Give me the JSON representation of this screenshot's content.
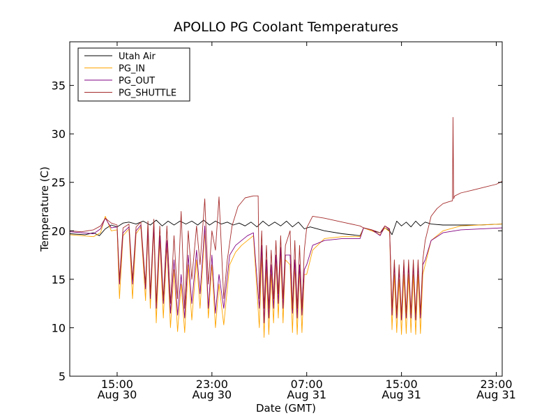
{
  "chart_data": {
    "type": "line",
    "title": "APOLLO PG Coolant Temperatures",
    "xlabel": "Date (GMT)",
    "ylabel": "Temperature (C)",
    "x_unit": "hours since Aug 30 00:00 GMT",
    "xlim": [
      11.0,
      47.5
    ],
    "ylim": [
      5,
      39.5
    ],
    "yticks": [
      5,
      10,
      15,
      20,
      25,
      30,
      35
    ],
    "xticks": [
      {
        "x": 15,
        "line1": "15:00",
        "line2": "Aug 30"
      },
      {
        "x": 23,
        "line1": "23:00",
        "line2": "Aug 30"
      },
      {
        "x": 31,
        "line1": "07:00",
        "line2": "Aug 31"
      },
      {
        "x": 39,
        "line1": "15:00",
        "line2": "Aug 31"
      },
      {
        "x": 47,
        "line1": "23:00",
        "line2": "Aug 31"
      }
    ],
    "grid": false,
    "legend_position": "top-left",
    "series": [
      {
        "name": "Utah Air",
        "color": "#000000",
        "x": [
          11.0,
          12.3,
          13.0,
          13.5,
          14.0,
          14.5,
          15.0,
          15.5,
          16.0,
          16.6,
          17.2,
          17.8,
          18.3,
          18.8,
          19.3,
          19.8,
          20.3,
          20.8,
          21.3,
          21.8,
          22.3,
          22.8,
          23.3,
          23.8,
          24.3,
          24.8,
          25.3,
          25.8,
          26.3,
          26.8,
          27.3,
          27.8,
          28.3,
          28.8,
          29.3,
          29.8,
          30.3,
          30.8,
          31.3,
          32.5,
          34.0,
          35.5,
          35.8,
          36.5,
          37.2,
          37.6,
          38.0,
          38.2,
          38.6,
          39.0,
          39.4,
          39.8,
          40.2,
          40.6,
          41.0,
          41.5,
          42.5,
          44.0,
          45.5,
          47.5
        ],
        "values": [
          19.7,
          19.6,
          19.8,
          19.5,
          20.2,
          20.6,
          20.4,
          20.8,
          20.9,
          20.7,
          21.0,
          20.6,
          21.1,
          20.5,
          21.0,
          20.6,
          21.0,
          20.7,
          21.0,
          20.6,
          21.1,
          20.6,
          21.0,
          20.7,
          20.9,
          20.6,
          20.8,
          20.5,
          20.9,
          20.4,
          21.0,
          20.5,
          20.9,
          20.5,
          21.0,
          20.4,
          20.9,
          20.2,
          20.4,
          20.0,
          19.7,
          19.5,
          20.3,
          20.0,
          19.8,
          20.3,
          20.0,
          19.6,
          21.0,
          20.5,
          20.9,
          20.4,
          21.0,
          20.5,
          20.9,
          20.7,
          20.6,
          20.6,
          20.6,
          20.7
        ]
      },
      {
        "name": "PG_IN",
        "color": "#ffa500",
        "x": [
          11.0,
          12.0,
          13.0,
          13.6,
          14.0,
          14.5,
          15.0,
          15.2,
          15.5,
          16.0,
          16.3,
          16.6,
          17.0,
          17.4,
          17.6,
          17.8,
          18.1,
          18.3,
          18.6,
          18.9,
          19.2,
          19.5,
          19.8,
          20.1,
          20.4,
          20.7,
          21.0,
          21.3,
          21.7,
          22.0,
          22.4,
          22.7,
          23.0,
          23.3,
          23.6,
          24.0,
          24.5,
          25.0,
          25.5,
          26.0,
          26.5,
          27.0,
          27.2,
          27.4,
          27.6,
          27.8,
          28.0,
          28.2,
          28.4,
          28.6,
          28.8,
          29.0,
          29.2,
          29.6,
          29.8,
          30.0,
          30.2,
          30.4,
          30.6,
          30.8,
          31.0,
          31.5,
          32.5,
          34.0,
          35.5,
          35.8,
          36.5,
          37.2,
          37.6,
          38.0,
          38.2,
          38.4,
          38.6,
          38.8,
          39.0,
          39.2,
          39.4,
          39.6,
          39.8,
          40.0,
          40.2,
          40.4,
          40.6,
          40.8,
          41.0,
          41.5,
          42.5,
          44.0,
          47.5
        ],
        "values": [
          19.6,
          19.5,
          19.4,
          19.8,
          21.5,
          20.0,
          20.1,
          13.0,
          19.5,
          20.2,
          13.0,
          19.7,
          20.4,
          12.8,
          20.0,
          12.0,
          20.3,
          10.5,
          19.0,
          11.0,
          18.5,
          10.0,
          16.0,
          9.6,
          14.5,
          9.5,
          16.5,
          10.8,
          17.0,
          12.0,
          20.0,
          11.0,
          16.5,
          10.0,
          14.5,
          10.3,
          16.5,
          17.8,
          18.5,
          19.0,
          19.5,
          10.0,
          17.5,
          9.0,
          16.0,
          9.3,
          15.5,
          10.5,
          17.0,
          11.0,
          17.8,
          10.5,
          17.0,
          16.5,
          9.5,
          16.5,
          9.3,
          16.0,
          9.5,
          15.5,
          15.5,
          18.0,
          19.2,
          19.4,
          19.4,
          20.3,
          20.0,
          19.6,
          20.3,
          19.9,
          9.8,
          15.5,
          9.5,
          15.0,
          9.3,
          15.5,
          9.4,
          15.5,
          9.5,
          15.5,
          9.3,
          15.5,
          9.4,
          15.5,
          16.5,
          19.0,
          20.0,
          20.5,
          20.7
        ]
      },
      {
        "name": "PG_OUT",
        "color": "#800080",
        "x": [
          11.0,
          12.0,
          13.0,
          13.6,
          14.0,
          14.5,
          15.0,
          15.2,
          15.5,
          16.0,
          16.3,
          16.6,
          17.0,
          17.4,
          17.6,
          17.8,
          18.1,
          18.3,
          18.6,
          18.9,
          19.2,
          19.5,
          19.8,
          20.1,
          20.4,
          20.7,
          21.0,
          21.3,
          21.7,
          22.0,
          22.4,
          22.7,
          23.0,
          23.3,
          23.6,
          24.0,
          24.5,
          25.0,
          25.5,
          26.0,
          26.5,
          27.0,
          27.2,
          27.4,
          27.6,
          27.8,
          28.0,
          28.2,
          28.4,
          28.6,
          28.8,
          29.0,
          29.2,
          29.6,
          29.8,
          30.0,
          30.2,
          30.4,
          30.6,
          30.8,
          31.0,
          31.5,
          32.5,
          34.0,
          35.5,
          35.8,
          36.5,
          37.2,
          37.6,
          38.0,
          38.2,
          38.4,
          38.6,
          38.8,
          39.0,
          39.2,
          39.4,
          39.6,
          39.8,
          40.0,
          40.2,
          40.4,
          40.6,
          40.8,
          41.0,
          41.5,
          42.5,
          44.0,
          47.5
        ],
        "values": [
          19.9,
          19.8,
          19.7,
          20.2,
          21.3,
          20.3,
          20.4,
          14.5,
          19.8,
          20.4,
          14.5,
          20.0,
          20.6,
          14.0,
          20.3,
          13.0,
          20.5,
          12.0,
          19.5,
          12.5,
          19.0,
          11.5,
          17.0,
          11.3,
          15.5,
          11.0,
          17.5,
          12.5,
          18.0,
          13.5,
          20.5,
          12.0,
          17.5,
          11.5,
          15.5,
          12.0,
          17.5,
          18.5,
          19.0,
          19.5,
          19.8,
          12.0,
          18.5,
          10.5,
          17.0,
          11.0,
          16.5,
          12.0,
          17.5,
          12.5,
          18.3,
          12.0,
          17.5,
          17.5,
          11.5,
          17.0,
          11.0,
          16.5,
          11.3,
          16.0,
          16.5,
          18.5,
          19.0,
          19.2,
          19.2,
          20.3,
          20.1,
          19.5,
          20.5,
          20.1,
          11.3,
          16.5,
          11.0,
          16.0,
          10.8,
          16.5,
          11.0,
          16.5,
          11.0,
          16.5,
          10.8,
          16.5,
          11.0,
          16.5,
          17.0,
          19.0,
          19.8,
          20.1,
          20.3
        ]
      },
      {
        "name": "PG_SHUTTLE",
        "color": "#a52a2a",
        "x": [
          11.0,
          12.0,
          13.0,
          13.6,
          14.0,
          14.5,
          15.0,
          15.2,
          15.5,
          16.0,
          16.3,
          16.6,
          17.0,
          17.4,
          17.6,
          17.8,
          18.1,
          18.3,
          18.6,
          18.9,
          19.2,
          19.5,
          19.8,
          20.1,
          20.4,
          20.7,
          21.0,
          21.3,
          21.7,
          22.0,
          22.4,
          22.7,
          23.0,
          23.3,
          23.6,
          24.0,
          24.3,
          24.7,
          25.2,
          25.8,
          26.5,
          26.9,
          27.0,
          27.2,
          27.4,
          27.6,
          27.8,
          28.0,
          28.2,
          28.4,
          28.6,
          28.8,
          29.0,
          29.2,
          29.6,
          29.8,
          30.0,
          30.2,
          30.4,
          30.6,
          30.8,
          31.0,
          31.5,
          32.5,
          34.0,
          35.5,
          35.8,
          36.5,
          37.2,
          37.6,
          38.0,
          38.2,
          38.4,
          38.6,
          38.8,
          39.0,
          39.2,
          39.4,
          39.6,
          39.8,
          40.0,
          40.2,
          40.4,
          40.6,
          40.8,
          41.0,
          41.5,
          42.0,
          42.5,
          43.0,
          43.3,
          43.35,
          43.4,
          43.45,
          43.5,
          44.0,
          45.0,
          46.0,
          47.0,
          47.5
        ],
        "values": [
          20.0,
          19.9,
          20.1,
          20.5,
          21.3,
          20.8,
          20.6,
          15.0,
          20.3,
          20.7,
          15.0,
          20.4,
          20.9,
          14.5,
          21.0,
          13.5,
          21.2,
          12.5,
          20.5,
          13.0,
          20.5,
          12.5,
          19.5,
          13.0,
          22.0,
          12.0,
          20.0,
          15.0,
          20.5,
          16.5,
          23.3,
          14.5,
          20.0,
          18.0,
          23.5,
          13.0,
          17.0,
          20.5,
          22.5,
          23.4,
          23.6,
          23.6,
          13.0,
          20.0,
          12.0,
          18.5,
          12.0,
          18.0,
          13.0,
          19.0,
          13.5,
          19.5,
          13.0,
          18.5,
          20.0,
          12.0,
          19.0,
          12.0,
          18.5,
          12.0,
          18.0,
          20.3,
          21.5,
          21.3,
          20.9,
          20.5,
          20.3,
          20.1,
          19.8,
          20.5,
          20.2,
          12.0,
          17.0,
          11.5,
          16.5,
          11.3,
          17.0,
          11.5,
          17.0,
          11.5,
          17.0,
          11.3,
          17.0,
          11.5,
          17.0,
          19.0,
          21.5,
          22.3,
          22.8,
          23.0,
          23.1,
          31.7,
          23.3,
          23.5,
          23.6,
          23.9,
          24.2,
          24.5,
          24.8,
          25.1
        ]
      }
    ]
  }
}
